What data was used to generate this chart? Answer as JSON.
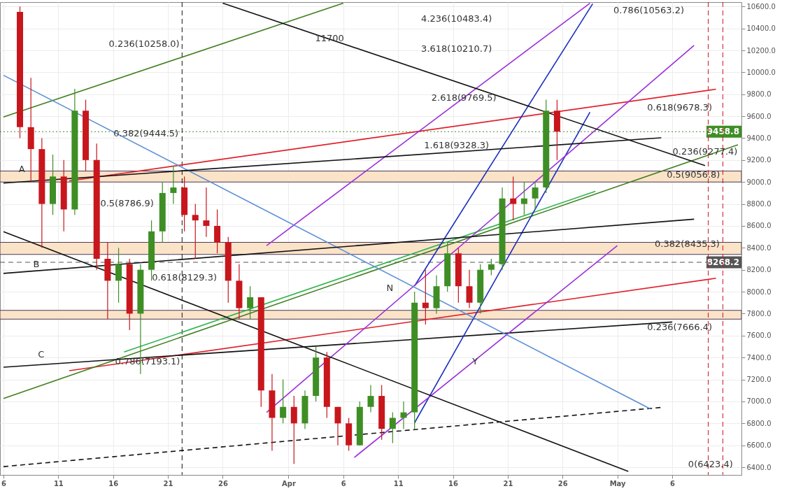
{
  "chart_data": {
    "type": "candlestick",
    "x": [
      "--03-07T12:00",
      "--03-08T12:00",
      "--03-09T12:00",
      "--03-10T12:00",
      "--03-11T12:00",
      "--03-12T12:00",
      "--03-13T12:00",
      "--03-14T12:00",
      "--03-15T12:00",
      "--03-16T12:00",
      "--03-17T12:00",
      "--03-18T12:00",
      "--03-19T12:00",
      "--03-20T12:00",
      "--03-21T12:00",
      "--03-22T12:00",
      "--03-23T12:00",
      "--03-24T12:00",
      "--03-25T12:00",
      "--03-26T12:00",
      "--03-27T12:00",
      "--03-28T12:00",
      "--03-29T12:00",
      "--03-30T12:00",
      "--03-31T12:00",
      "--04-01T12:00",
      "--04-02T12:00",
      "--04-03T12:00",
      "--04-04T12:00",
      "--04-05T12:00",
      "--04-06T12:00",
      "--04-07T12:00",
      "--04-08T12:00",
      "--04-09T12:00",
      "--04-10T12:00",
      "--04-11T12:00",
      "--04-12T12:00",
      "--04-13T12:00",
      "--04-14T12:00",
      "--04-15T12:00",
      "--04-16T12:00",
      "--04-17T12:00",
      "--04-18T12:00",
      "--04-19T12:00",
      "--04-20T12:00",
      "--04-21T12:00",
      "--04-22T12:00",
      "--04-23T12:00",
      "--04-24T12:00",
      "--04-25T12:00"
    ],
    "ohlc": [
      [
        10550,
        10600,
        9400,
        9500
      ],
      [
        9500,
        9950,
        9000,
        9300
      ],
      [
        9300,
        9400,
        8400,
        8800
      ],
      [
        8800,
        9250,
        8700,
        9050
      ],
      [
        9050,
        9200,
        8550,
        8750
      ],
      [
        8750,
        9850,
        8700,
        9650
      ],
      [
        9650,
        9750,
        9100,
        9200
      ],
      [
        9200,
        9350,
        8200,
        8300
      ],
      [
        8300,
        8450,
        7750,
        8100
      ],
      [
        8100,
        8400,
        7900,
        8250
      ],
      [
        8250,
        8300,
        7650,
        7800
      ],
      [
        7800,
        8250,
        7250,
        8200
      ],
      [
        8200,
        8650,
        8100,
        8550
      ],
      [
        8550,
        9000,
        8450,
        8900
      ],
      [
        8900,
        9150,
        8800,
        8950
      ],
      [
        8950,
        9050,
        8550,
        8700
      ],
      [
        8700,
        8800,
        8300,
        8650
      ],
      [
        8650,
        8950,
        8500,
        8600
      ],
      [
        8600,
        8750,
        8350,
        8450
      ],
      [
        8450,
        8500,
        7900,
        8100
      ],
      [
        8100,
        8250,
        7750,
        7850
      ],
      [
        7850,
        8050,
        7750,
        7950
      ],
      [
        7950,
        7950,
        6950,
        7100
      ],
      [
        7100,
        7250,
        6550,
        6850
      ],
      [
        6850,
        7200,
        6800,
        6950
      ],
      [
        6950,
        7050,
        6430,
        6800
      ],
      [
        6800,
        7100,
        6750,
        7050
      ],
      [
        7050,
        7500,
        7000,
        7400
      ],
      [
        7400,
        7450,
        6850,
        6950
      ],
      [
        6950,
        6950,
        6600,
        6800
      ],
      [
        6800,
        6850,
        6550,
        6600
      ],
      [
        6600,
        7000,
        6600,
        6950
      ],
      [
        6950,
        7150,
        6900,
        7050
      ],
      [
        7050,
        7150,
        6650,
        6750
      ],
      [
        6750,
        6900,
        6620,
        6850
      ],
      [
        6850,
        7000,
        6750,
        6900
      ],
      [
        6900,
        8000,
        6750,
        7900
      ],
      [
        7900,
        8200,
        7700,
        7850
      ],
      [
        7850,
        8150,
        7800,
        8050
      ],
      [
        8050,
        8450,
        8000,
        8350
      ],
      [
        8350,
        8400,
        7900,
        8050
      ],
      [
        8050,
        8200,
        7850,
        7900
      ],
      [
        7900,
        8250,
        7800,
        8200
      ],
      [
        8200,
        8300,
        8150,
        8250
      ],
      [
        8250,
        8950,
        8200,
        8850
      ],
      [
        8850,
        9050,
        8650,
        8800
      ],
      [
        8800,
        9000,
        8700,
        8850
      ],
      [
        8850,
        9000,
        8750,
        8950
      ],
      [
        8950,
        9750,
        8900,
        9650
      ],
      [
        9650,
        9750,
        9200,
        9458.8
      ]
    ],
    "colors": [
      "#c8161d",
      "#c8161d",
      "#c8161d",
      "#3e8e25",
      "#c8161d",
      "#3e8e25",
      "#c8161d",
      "#c8161d",
      "#c8161d",
      "#3e8e25",
      "#c8161d",
      "#3e8e25",
      "#3e8e25",
      "#3e8e25",
      "#3e8e25",
      "#c8161d",
      "#c8161d",
      "#c8161d",
      "#c8161d",
      "#c8161d",
      "#c8161d",
      "#3e8e25",
      "#c8161d",
      "#c8161d",
      "#3e8e25",
      "#c8161d",
      "#3e8e25",
      "#3e8e25",
      "#c8161d",
      "#c8161d",
      "#c8161d",
      "#3e8e25",
      "#3e8e25",
      "#c8161d",
      "#3e8e25",
      "#3e8e25",
      "#3e8e25",
      "#c8161d",
      "#3e8e25",
      "#3e8e25",
      "#c8161d",
      "#c8161d",
      "#3e8e25",
      "#3e8e25",
      "#3e8e25",
      "#c8161d",
      "#3e8e25",
      "#3e8e25",
      "#3e8e25",
      "#c8161d"
    ],
    "series": [
      {
        "type": "line",
        "color": "#e0202a",
        "x": [
          "--03-12",
          "--05-10"
        ],
        "values": [
          9010,
          9846
        ]
      },
      {
        "type": "line",
        "color": "#e0202a",
        "x": [
          "--03-12",
          "--05-10"
        ],
        "values": [
          7280,
          8123
        ]
      },
      {
        "type": "line",
        "color": "#2db34a",
        "x": [
          "--03-17",
          "--04-29"
        ],
        "values": [
          7450,
          8915
        ]
      },
      {
        "type": "line",
        "color": "#3f7f1e",
        "x": [
          "--03-06",
          "--04-06"
        ],
        "values": [
          9593,
          10630
        ]
      },
      {
        "type": "line",
        "color": "#3f7f1e",
        "x": [
          "--03-06",
          "--05-12"
        ],
        "values": [
          7027,
          9339
        ]
      },
      {
        "type": "line",
        "color": "#111111",
        "x": [
          "--03-06",
          "--05-06"
        ],
        "values": [
          7312,
          7724
        ]
      },
      {
        "type": "line",
        "color": "#111111",
        "line_style": "dashed",
        "x": [
          "--03-06",
          "--05-05"
        ],
        "values": [
          6406,
          6945
        ]
      },
      {
        "type": "line",
        "color": "#1a2fc0",
        "x": [
          "--04-12T12:00",
          "--04-28T18:00"
        ],
        "values": [
          8053,
          10625
        ]
      },
      {
        "type": "line",
        "color": "#1a2fc0",
        "x": [
          "--04-12T12:00",
          "--04-28T12:00"
        ],
        "values": [
          6805,
          9637
        ]
      },
      {
        "type": "line",
        "color": "#9b30d9",
        "x": [
          "--03-30",
          "--05-08"
        ],
        "values": [
          6900,
          10245
        ]
      },
      {
        "type": "line",
        "color": "#9b30d9",
        "x": [
          "--04-07",
          "--05-01"
        ],
        "values": [
          6489,
          8421
        ]
      },
      {
        "type": "line",
        "color": "#9b30d9",
        "x": [
          "--03-30",
          "--04-28T12:00"
        ],
        "values": [
          8421,
          10630
        ]
      },
      {
        "type": "line",
        "color": "#5b8fd6",
        "x": [
          "--03-06",
          "--05-04"
        ],
        "values": [
          9973,
          6932
        ]
      },
      {
        "type": "line",
        "color": "#111111",
        "x": [
          "--03-06",
          "--05-02"
        ],
        "values": [
          8547,
          6362
        ]
      },
      {
        "type": "line",
        "color": "#111111",
        "x": [
          "--03-06",
          "--05-05"
        ],
        "values": [
          8990,
          9403
        ]
      },
      {
        "type": "line",
        "color": "#111111",
        "x": [
          "--03-06",
          "--05-08"
        ],
        "values": [
          8167,
          8661
        ]
      },
      {
        "type": "line",
        "color": "#111111",
        "x": [
          "--03-26",
          "--05-09"
        ],
        "values": [
          10630,
          9149
        ]
      }
    ],
    "bands": [
      {
        "axis": "y",
        "from": 9000,
        "to": 9100,
        "color": "#fbe3c8"
      },
      {
        "axis": "y",
        "from": 8340,
        "to": 8450,
        "color": "#fbe3c8"
      },
      {
        "axis": "y",
        "from": 7750,
        "to": 7830,
        "color": "#fbe3c8"
      }
    ],
    "ref_lines": [
      {
        "axis": "y",
        "value": 9458.8,
        "label": "9458.8",
        "color": "#3e8e25",
        "line_style": "dotted"
      },
      {
        "axis": "y",
        "value": 8268.2,
        "label": "8268.2",
        "color": "#555555",
        "line_style": "dashed"
      },
      {
        "axis": "x",
        "value": "--03-22T07:00",
        "label": null,
        "color": "#111111",
        "line_style": "dashed"
      },
      {
        "axis": "x",
        "value": "--05-09T07:00",
        "label": null,
        "color": "#c8161d",
        "line_style": "dashed"
      },
      {
        "axis": "x",
        "value": "--05-10T15:00",
        "label": null,
        "color": "#c8161d",
        "line_style": "dashed"
      }
    ],
    "annotations": [
      "0.236(10258.0)",
      {
        "text": "0.382(9444.5)",
        "x": "--03-19",
        "y": 9444.5
      },
      "0.5(8786.9)",
      {
        "text": "0.618(8129.3)",
        "x": "--03-22T12:00",
        "y": 8129.3
      },
      "0.786(7193.1)",
      "4.236(10483.4)",
      "3.618(10210.7)",
      {
        "text": "2.618(9769.5)",
        "x": "--04-17",
        "y": 9769.5
      },
      "1.618(9328.3)",
      "0.786(10563.2)",
      "0.618(9678.3)",
      {
        "text": "0.236(9277.4)",
        "x": "--05-09",
        "y": 9277.4
      },
      "0.5(9056.8)",
      {
        "text": "0.382(8435.3)",
        "x": "--05-07T09:00",
        "y": 8435.3
      },
      "0.236(7666.4)",
      {
        "text": "0(6423.4)",
        "x": "--05-09T12:00",
        "y": 6423.4
      },
      "11700",
      {
        "text": "A",
        "x": "--03-07T16:00",
        "y": 9118
      },
      {
        "text": "B",
        "x": "--03-09",
        "y": 8250
      },
      "C",
      "N",
      "Y"
    ],
    "xlim": [
      "--03-06",
      "--05-12"
    ],
    "xticks": [
      {
        "value": "--03-06",
        "label": "6"
      },
      {
        "value": "--03-11",
        "label": "11"
      },
      {
        "value": "--03-16",
        "label": "16"
      },
      {
        "value": "--03-21",
        "label": "21"
      },
      {
        "value": "--03-26",
        "label": "26"
      },
      {
        "value": "--04-01",
        "label": "Apr"
      },
      {
        "value": "--04-06",
        "label": "6"
      },
      {
        "value": "--04-11",
        "label": "11"
      },
      {
        "value": "--04-16",
        "label": "16"
      },
      {
        "value": "--04-21",
        "label": "21"
      },
      {
        "value": "--04-26",
        "label": "26"
      },
      {
        "value": "--05-01",
        "label": "May"
      },
      {
        "value": "--05-06",
        "label": "6"
      }
    ],
    "ylim": [
      6330,
      10640
    ],
    "yticks": [
      {
        "value": 6400,
        "label": "6400.0"
      },
      {
        "value": 6600,
        "label": "6600.0"
      },
      {
        "value": 6800,
        "label": "6800.0"
      },
      {
        "value": 7000,
        "label": "7000.0"
      },
      {
        "value": 7200,
        "label": "7200.0"
      },
      {
        "value": 7400,
        "label": "7400.0"
      },
      {
        "value": 7600,
        "label": "7600.0"
      },
      {
        "value": 7800,
        "label": "7800.0"
      },
      {
        "value": 8000,
        "label": "8000.0"
      },
      {
        "value": 8200,
        "label": "8200.0"
      },
      {
        "value": 8400,
        "label": "8400.0"
      },
      {
        "value": 8600,
        "label": "8600.0"
      },
      {
        "value": 8800,
        "label": "8800.0"
      },
      {
        "value": 9000,
        "label": "9000.0"
      },
      {
        "value": 9200,
        "label": "9200.0"
      },
      {
        "value": 9400,
        "label": "9400.0"
      },
      {
        "value": 9600,
        "label": "9600.0"
      },
      {
        "value": 9800,
        "label": "9800.0"
      },
      {
        "value": 10000,
        "label": "10000.0"
      },
      {
        "value": 10200,
        "label": "10200.0"
      },
      {
        "value": 10400,
        "label": "10400.0"
      },
      {
        "value": 10600,
        "label": "10600.0"
      }
    ],
    "grid": true
  }
}
